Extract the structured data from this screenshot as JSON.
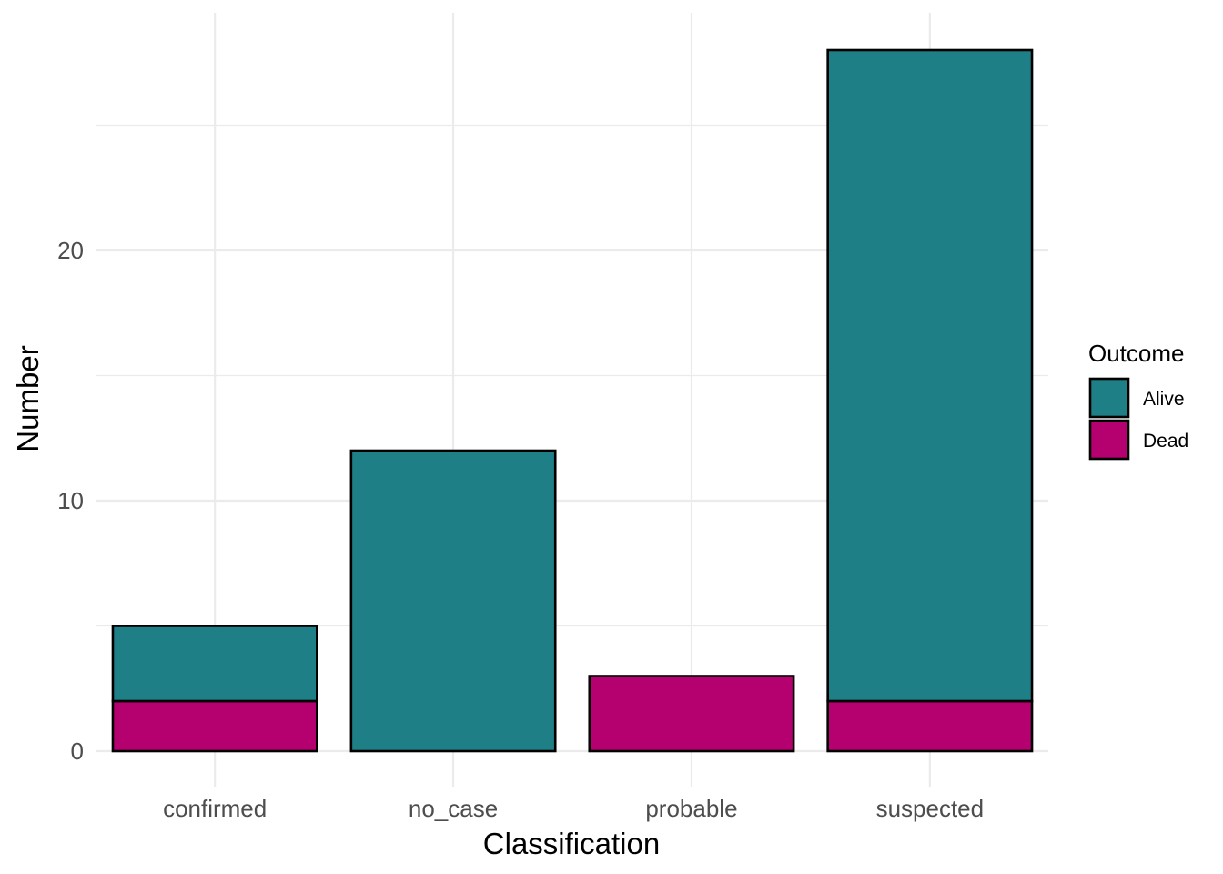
{
  "chart_data": {
    "type": "bar",
    "stacked": true,
    "title": "",
    "xlabel": "Classification",
    "ylabel": "Number",
    "categories": [
      "confirmed",
      "no_case",
      "probable",
      "suspected"
    ],
    "series": [
      {
        "name": "Dead",
        "color": "#B5006F",
        "values": [
          2,
          0,
          3,
          2
        ]
      },
      {
        "name": "Alive",
        "color": "#1F7F87",
        "values": [
          3,
          12,
          0,
          26
        ]
      }
    ],
    "ylim": [
      0,
      29.4
    ],
    "yticks": [
      0,
      10,
      20
    ],
    "yticks_minor": [
      5,
      15,
      25
    ],
    "grid": true,
    "legend": {
      "title": "Outcome",
      "position": "right",
      "entries": [
        "Alive",
        "Dead"
      ]
    }
  }
}
